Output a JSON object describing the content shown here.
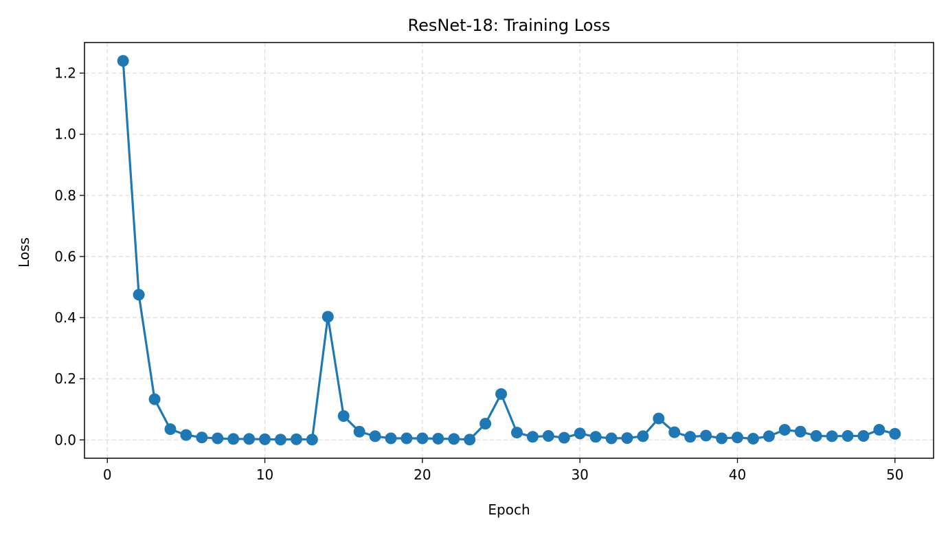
{
  "chart_data": {
    "type": "line",
    "title": "ResNet-18: Training Loss",
    "xlabel": "Epoch",
    "ylabel": "Loss",
    "xlim": [
      -1.45,
      52.45
    ],
    "ylim": [
      -0.06,
      1.3
    ],
    "xticks": [
      0,
      10,
      20,
      30,
      40,
      50
    ],
    "xtick_labels": [
      "0",
      "10",
      "20",
      "30",
      "40",
      "50"
    ],
    "yticks": [
      0.0,
      0.2,
      0.4,
      0.6,
      0.8,
      1.0,
      1.2
    ],
    "ytick_labels": [
      "0.0",
      "0.2",
      "0.4",
      "0.6",
      "0.8",
      "1.0",
      "1.2"
    ],
    "grid": true,
    "color": "#1f77b4",
    "series": [
      {
        "x": [
          1,
          2,
          3,
          4,
          5,
          6,
          7,
          8,
          9,
          10,
          11,
          12,
          13,
          14,
          15,
          16,
          17,
          18,
          19,
          20,
          21,
          22,
          23,
          24,
          25,
          26,
          27,
          28,
          29,
          30,
          31,
          32,
          33,
          34,
          35,
          36,
          37,
          38,
          39,
          40,
          41,
          42,
          43,
          44,
          45,
          46,
          47,
          48,
          49,
          50
        ],
        "values": [
          1.24,
          0.475,
          0.133,
          0.035,
          0.016,
          0.008,
          0.005,
          0.003,
          0.003,
          0.002,
          0.001,
          0.002,
          0.001,
          0.403,
          0.078,
          0.027,
          0.012,
          0.005,
          0.005,
          0.005,
          0.004,
          0.003,
          0.001,
          0.053,
          0.15,
          0.024,
          0.01,
          0.013,
          0.007,
          0.021,
          0.01,
          0.005,
          0.006,
          0.012,
          0.07,
          0.025,
          0.01,
          0.014,
          0.005,
          0.008,
          0.004,
          0.012,
          0.033,
          0.027,
          0.013,
          0.012,
          0.013,
          0.013,
          0.033,
          0.02
        ]
      }
    ]
  }
}
